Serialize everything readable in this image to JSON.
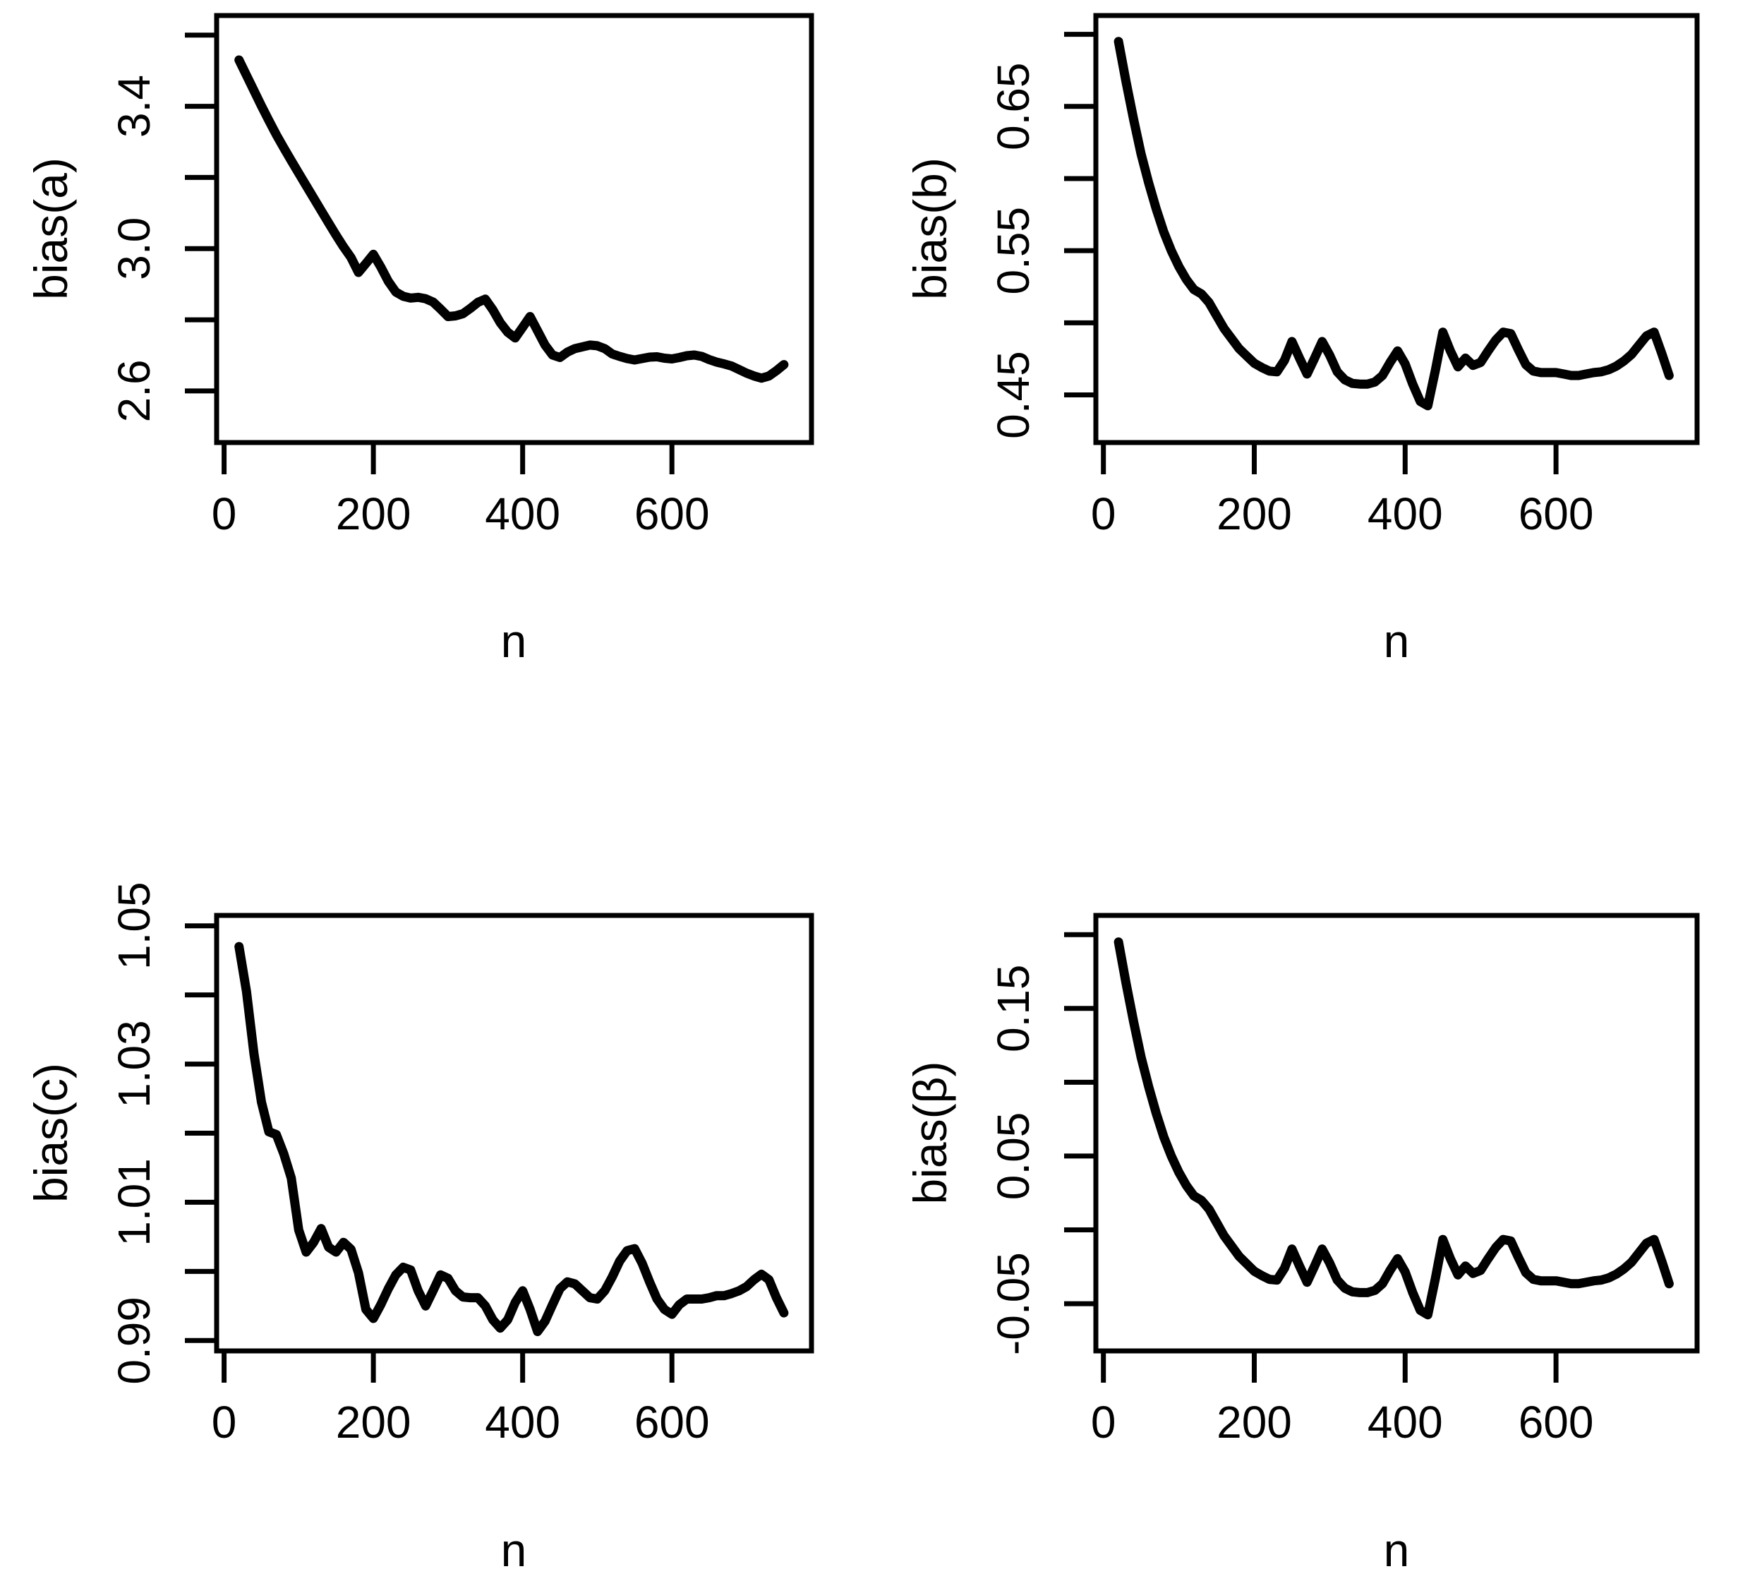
{
  "figure": {
    "background": "#ffffff",
    "line_color": "#000000",
    "text_color": "#000000"
  },
  "chart_data": [
    {
      "id": "bias-a",
      "type": "line",
      "title": "",
      "xlabel": "n",
      "ylabel": "bias(a)",
      "xlim": [
        -10,
        787
      ],
      "ylim": [
        2.455,
        3.655
      ],
      "grid": "off",
      "legend": "none",
      "xticks": [
        0,
        200,
        400,
        600
      ],
      "xtick_labels": [
        "0",
        "200",
        "400",
        "600"
      ],
      "yticks": [
        2.6,
        2.8,
        3.0,
        3.2,
        3.4,
        3.6
      ],
      "ytick_labels": [
        "2.6",
        "",
        "3.0",
        "",
        "3.4",
        ""
      ],
      "x": [
        20,
        30,
        40,
        50,
        60,
        70,
        80,
        90,
        100,
        110,
        120,
        130,
        140,
        150,
        160,
        170,
        180,
        190,
        200,
        210,
        220,
        230,
        240,
        250,
        260,
        270,
        280,
        290,
        300,
        310,
        320,
        330,
        340,
        350,
        360,
        370,
        380,
        390,
        400,
        410,
        420,
        430,
        440,
        450,
        460,
        470,
        480,
        490,
        500,
        510,
        520,
        530,
        540,
        550,
        560,
        570,
        580,
        590,
        600,
        610,
        620,
        630,
        640,
        650,
        660,
        670,
        680,
        690,
        700,
        710,
        720,
        730,
        740,
        750
      ],
      "y": [
        3.53,
        3.487,
        3.444,
        3.401,
        3.36,
        3.32,
        3.283,
        3.247,
        3.212,
        3.177,
        3.142,
        3.107,
        3.072,
        3.038,
        3.005,
        2.975,
        2.933,
        2.958,
        2.984,
        2.948,
        2.908,
        2.878,
        2.866,
        2.861,
        2.863,
        2.859,
        2.85,
        2.83,
        2.809,
        2.811,
        2.817,
        2.832,
        2.849,
        2.858,
        2.828,
        2.792,
        2.765,
        2.749,
        2.779,
        2.809,
        2.769,
        2.729,
        2.701,
        2.694,
        2.709,
        2.719,
        2.724,
        2.729,
        2.727,
        2.719,
        2.704,
        2.697,
        2.691,
        2.687,
        2.691,
        2.695,
        2.696,
        2.692,
        2.69,
        2.694,
        2.699,
        2.701,
        2.697,
        2.688,
        2.681,
        2.676,
        2.67,
        2.66,
        2.65,
        2.642,
        2.636,
        2.642,
        2.657,
        2.674
      ]
    },
    {
      "id": "bias-b",
      "type": "line",
      "title": "",
      "xlabel": "n",
      "ylabel": "bias(b)",
      "xlim": [
        -10,
        787
      ],
      "ylim": [
        0.417,
        0.713
      ],
      "grid": "off",
      "legend": "none",
      "xticks": [
        0,
        200,
        400,
        600
      ],
      "xtick_labels": [
        "0",
        "200",
        "400",
        "600"
      ],
      "yticks": [
        0.45,
        0.5,
        0.55,
        0.6,
        0.65,
        0.7
      ],
      "ytick_labels": [
        "0.45",
        "",
        "0.55",
        "",
        "0.65",
        ""
      ],
      "x": [
        20,
        30,
        40,
        50,
        60,
        70,
        80,
        90,
        100,
        110,
        120,
        130,
        140,
        150,
        160,
        170,
        180,
        190,
        200,
        210,
        220,
        230,
        240,
        250,
        260,
        270,
        280,
        290,
        300,
        310,
        320,
        330,
        340,
        350,
        360,
        370,
        380,
        390,
        400,
        410,
        420,
        430,
        440,
        450,
        460,
        470,
        480,
        490,
        500,
        510,
        520,
        530,
        540,
        550,
        560,
        570,
        580,
        590,
        600,
        610,
        620,
        630,
        640,
        650,
        660,
        670,
        680,
        690,
        700,
        710,
        720,
        730,
        740,
        750
      ],
      "y": [
        0.695,
        0.667,
        0.641,
        0.617,
        0.597,
        0.579,
        0.563,
        0.55,
        0.539,
        0.53,
        0.523,
        0.52,
        0.514,
        0.505,
        0.496,
        0.489,
        0.482,
        0.477,
        0.472,
        0.469,
        0.4665,
        0.466,
        0.474,
        0.487,
        0.4755,
        0.4645,
        0.4755,
        0.487,
        0.4775,
        0.466,
        0.4605,
        0.458,
        0.4575,
        0.4575,
        0.459,
        0.4635,
        0.4725,
        0.4805,
        0.4715,
        0.4575,
        0.4455,
        0.4425,
        0.467,
        0.4935,
        0.4805,
        0.4695,
        0.4755,
        0.4705,
        0.4725,
        0.4805,
        0.488,
        0.4935,
        0.4925,
        0.4815,
        0.471,
        0.4665,
        0.4655,
        0.4655,
        0.4655,
        0.4645,
        0.4635,
        0.4635,
        0.4645,
        0.4655,
        0.466,
        0.4675,
        0.47,
        0.4735,
        0.478,
        0.4845,
        0.491,
        0.4935,
        0.479,
        0.4635
      ]
    },
    {
      "id": "bias-c",
      "type": "line",
      "title": "",
      "xlabel": "n",
      "ylabel": "bias(c)",
      "xlim": [
        -10,
        787
      ],
      "ylim": [
        0.9885,
        1.0515
      ],
      "grid": "off",
      "legend": "none",
      "xticks": [
        0,
        200,
        400,
        600
      ],
      "xtick_labels": [
        "0",
        "200",
        "400",
        "600"
      ],
      "yticks": [
        0.99,
        1.0,
        1.01,
        1.02,
        1.03,
        1.04,
        1.05
      ],
      "ytick_labels": [
        "0.99",
        "",
        "1.01",
        "",
        "1.03",
        "",
        "1.05"
      ],
      "x": [
        20,
        30,
        40,
        50,
        60,
        70,
        80,
        90,
        100,
        110,
        120,
        130,
        140,
        150,
        160,
        170,
        180,
        190,
        200,
        210,
        220,
        230,
        240,
        250,
        260,
        270,
        280,
        290,
        300,
        310,
        320,
        330,
        340,
        350,
        360,
        370,
        380,
        390,
        400,
        410,
        420,
        430,
        440,
        450,
        460,
        470,
        480,
        490,
        500,
        510,
        520,
        530,
        540,
        550,
        560,
        570,
        580,
        590,
        600,
        610,
        620,
        630,
        640,
        650,
        660,
        670,
        680,
        690,
        700,
        710,
        720,
        730,
        740,
        750
      ],
      "y": [
        1.047,
        1.0405,
        1.0315,
        1.0245,
        1.0202,
        1.0198,
        1.017,
        1.0135,
        1.006,
        1.0028,
        1.0042,
        1.0062,
        1.0035,
        1.0028,
        1.0042,
        1.0032,
        0.9998,
        0.9945,
        0.9932,
        0.9952,
        0.9975,
        0.9995,
        1.0006,
        1.0002,
        0.9972,
        0.995,
        0.9972,
        0.9995,
        0.999,
        0.9972,
        0.9963,
        0.9962,
        0.9962,
        0.995,
        0.993,
        0.9918,
        0.993,
        0.9955,
        0.9972,
        0.9945,
        0.9913,
        0.9928,
        0.9952,
        0.9975,
        0.9985,
        0.9982,
        0.9972,
        0.9962,
        0.996,
        0.9972,
        0.9992,
        1.0015,
        1.003,
        1.0033,
        1.0012,
        0.9985,
        0.996,
        0.9945,
        0.9938,
        0.9952,
        0.996,
        0.996,
        0.996,
        0.9962,
        0.9965,
        0.9965,
        0.9968,
        0.9972,
        0.9978,
        0.9988,
        0.9996,
        0.9988,
        0.9962,
        0.994
      ]
    },
    {
      "id": "bias-beta",
      "type": "line",
      "title": "",
      "xlabel": "n",
      "ylabel": "bias(β)",
      "xlim": [
        -10,
        787
      ],
      "ylim": [
        -0.082,
        0.213
      ],
      "grid": "off",
      "legend": "none",
      "xticks": [
        0,
        200,
        400,
        600
      ],
      "xtick_labels": [
        "0",
        "200",
        "400",
        "600"
      ],
      "yticks": [
        -0.05,
        0.0,
        0.05,
        0.1,
        0.15,
        0.2
      ],
      "ytick_labels": [
        "-0.05",
        "",
        "0.05",
        "",
        "0.15",
        ""
      ],
      "x": [
        20,
        30,
        40,
        50,
        60,
        70,
        80,
        90,
        100,
        110,
        120,
        130,
        140,
        150,
        160,
        170,
        180,
        190,
        200,
        210,
        220,
        230,
        240,
        250,
        260,
        270,
        280,
        290,
        300,
        310,
        320,
        330,
        340,
        350,
        360,
        370,
        380,
        390,
        400,
        410,
        420,
        430,
        440,
        450,
        460,
        470,
        480,
        490,
        500,
        510,
        520,
        530,
        540,
        550,
        560,
        570,
        580,
        590,
        600,
        610,
        620,
        630,
        640,
        650,
        660,
        670,
        680,
        690,
        700,
        710,
        720,
        730,
        740,
        750
      ],
      "y": [
        0.195,
        0.167,
        0.141,
        0.117,
        0.097,
        0.079,
        0.063,
        0.05,
        0.039,
        0.03,
        0.023,
        0.02,
        0.014,
        0.005,
        -0.004,
        -0.011,
        -0.018,
        -0.023,
        -0.028,
        -0.031,
        -0.0335,
        -0.034,
        -0.026,
        -0.013,
        -0.0245,
        -0.0355,
        -0.0245,
        -0.013,
        -0.0225,
        -0.034,
        -0.0395,
        -0.042,
        -0.0425,
        -0.0425,
        -0.041,
        -0.0365,
        -0.0275,
        -0.0195,
        -0.0285,
        -0.0425,
        -0.0545,
        -0.0575,
        -0.033,
        -0.0065,
        -0.0195,
        -0.0305,
        -0.0245,
        -0.0295,
        -0.0275,
        -0.0195,
        -0.012,
        -0.0065,
        -0.0075,
        -0.0185,
        -0.029,
        -0.0335,
        -0.0345,
        -0.0345,
        -0.0345,
        -0.0355,
        -0.0365,
        -0.0365,
        -0.0355,
        -0.0345,
        -0.034,
        -0.0325,
        -0.03,
        -0.0265,
        -0.022,
        -0.0155,
        -0.009,
        -0.0065,
        -0.021,
        -0.0365
      ]
    }
  ]
}
